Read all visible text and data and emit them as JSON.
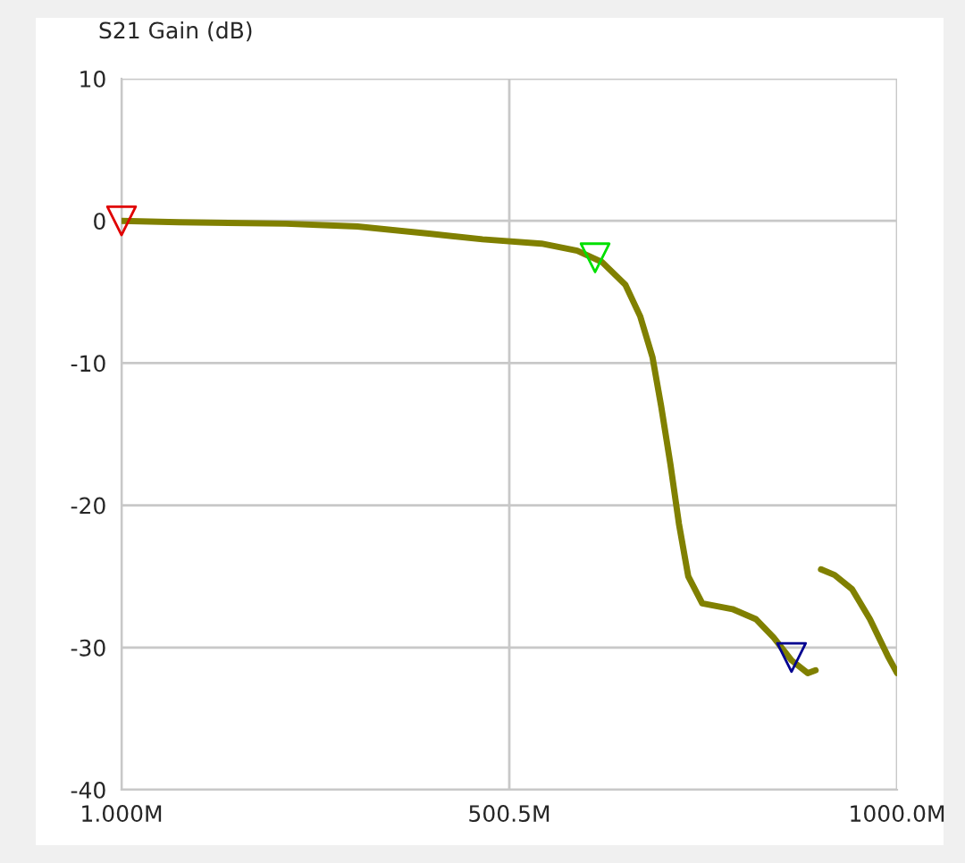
{
  "chart_data": {
    "type": "line",
    "ylabel": "S21 Gain (dB)",
    "series": [
      {
        "color": "#808000",
        "marker": "none",
        "x": [
          1,
          74.7,
          212.8,
          304.9,
          397,
          466,
          542,
          588,
          620,
          650,
          669,
          685,
          696,
          708,
          719,
          731,
          749,
          788,
          818,
          841,
          864,
          885,
          895,
          898,
          902,
          919.5,
          942,
          965,
          988,
          1000
        ],
        "values": [
          0,
          -0.1,
          -0.2,
          -0.4,
          -0.9,
          -1.3,
          -1.6,
          -2.1,
          -2.9,
          -4.5,
          -6.7,
          -9.6,
          -13,
          -17.1,
          -21.3,
          -25,
          -26.9,
          -27.3,
          -28,
          -29.3,
          -30.9,
          -31.8,
          -31.6,
          null,
          -24.5,
          -24.9,
          -25.9,
          -28,
          -30.6,
          -31.8
        ]
      },
      {
        "type": "scatter",
        "marker": "triangle",
        "x": [
          1,
          611,
          864
        ],
        "values": [
          0,
          -2.6,
          -30.7
        ],
        "colors": [
          "#e00000",
          "#00e000",
          "#000090"
        ]
      }
    ],
    "xlim": [
      1,
      1000
    ],
    "ylim": [
      -40,
      10
    ],
    "xticks": [
      {
        "value": 1,
        "label": "1.000M"
      },
      {
        "value": 500.5,
        "label": "500.5M"
      },
      {
        "value": 1000,
        "label": "1000.0M"
      }
    ],
    "yticks": [
      -40,
      -30,
      -20,
      -10,
      0,
      10
    ],
    "grid": true,
    "legend": false
  }
}
